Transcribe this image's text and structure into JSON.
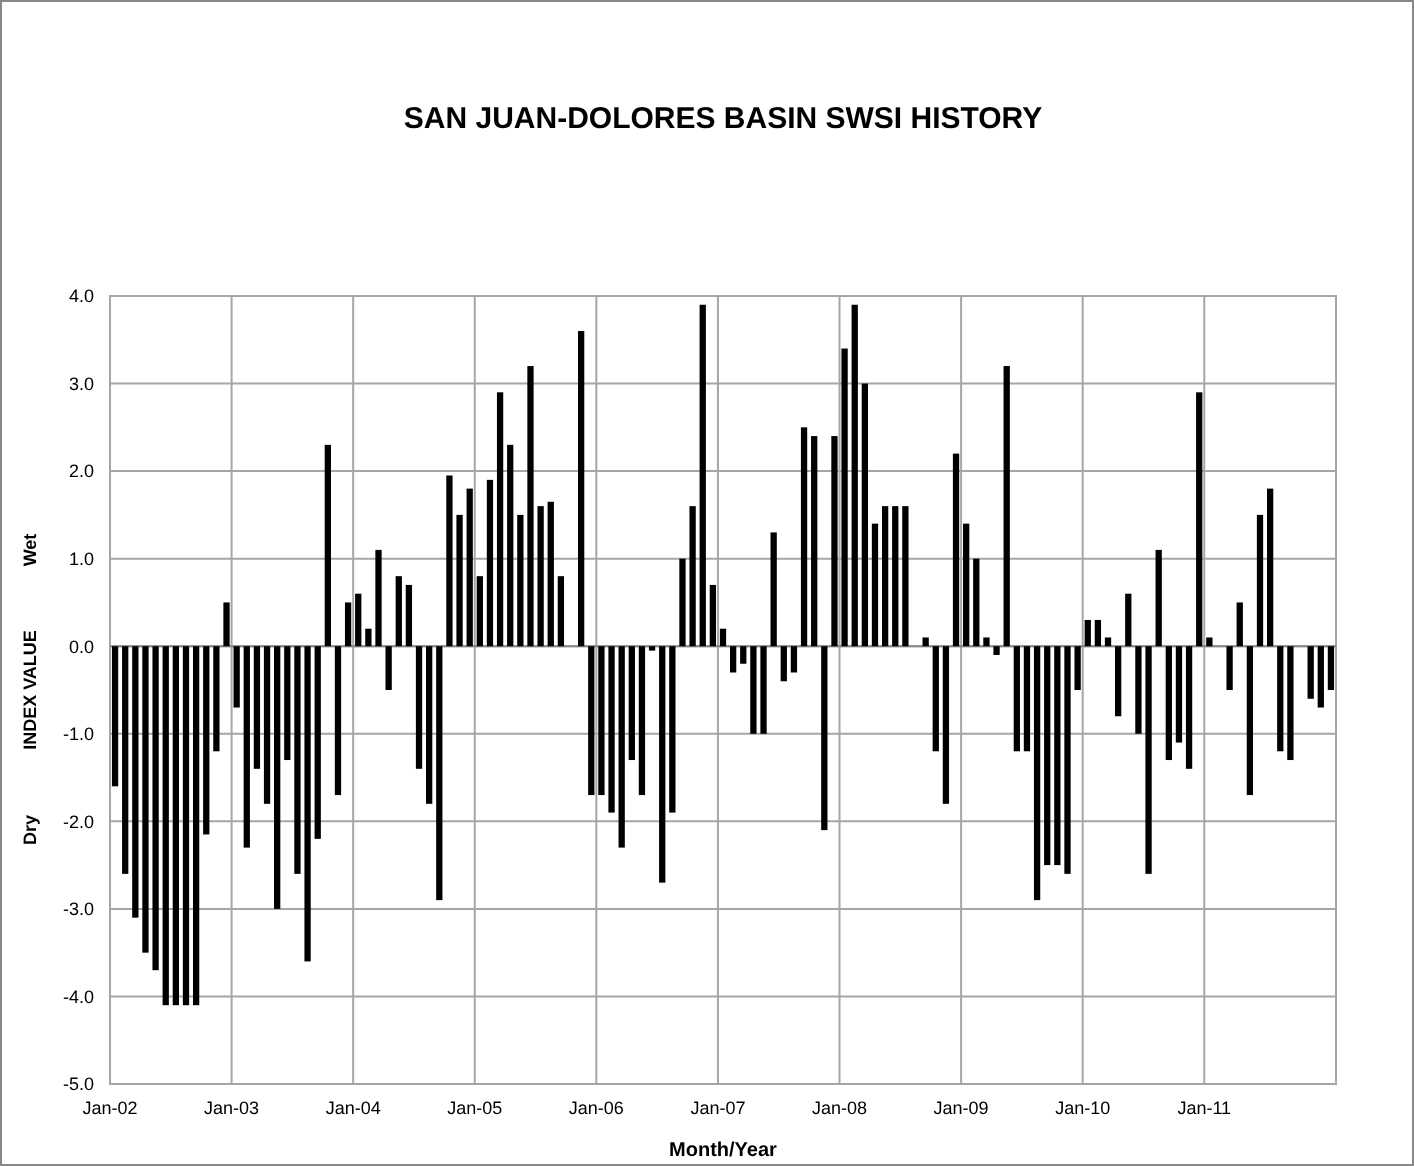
{
  "chart_data": {
    "type": "bar",
    "title": "SAN JUAN-DOLORES BASIN SWSI HISTORY",
    "xlabel": "Month/Year",
    "ylabel": "INDEX VALUE",
    "annotations": [
      "Dry",
      "Wet"
    ],
    "categories": [
      "Jan-02",
      null,
      null,
      null,
      null,
      null,
      null,
      null,
      null,
      null,
      null,
      null,
      "Jan-03",
      null,
      null,
      null,
      null,
      null,
      null,
      null,
      null,
      null,
      null,
      null,
      "Jan-04",
      null,
      null,
      null,
      null,
      null,
      null,
      null,
      null,
      null,
      null,
      null,
      "Jan-05",
      null,
      null,
      null,
      null,
      null,
      null,
      null,
      null,
      null,
      null,
      null,
      "Jan-06",
      null,
      null,
      null,
      null,
      null,
      null,
      null,
      null,
      null,
      null,
      null,
      "Jan-07",
      null,
      null,
      null,
      null,
      null,
      null,
      null,
      null,
      null,
      null,
      null,
      "Jan-08",
      null,
      null,
      null,
      null,
      null,
      null,
      null,
      null,
      null,
      null,
      null,
      "Jan-09",
      null,
      null,
      null,
      null,
      null,
      null,
      null,
      null,
      null,
      null,
      null,
      "Jan-10",
      null,
      null,
      null,
      null,
      null,
      null,
      null,
      null,
      null,
      null,
      null,
      "Jan-11",
      null,
      null,
      null,
      null,
      null,
      null,
      null,
      null,
      null,
      null,
      null,
      null
    ],
    "values": [
      -1.6,
      -2.6,
      -3.1,
      -3.5,
      -3.7,
      -4.1,
      -4.1,
      -4.1,
      -4.1,
      -2.15,
      -1.2,
      0.5,
      -0.7,
      -2.3,
      -1.4,
      -1.8,
      -3.0,
      -1.3,
      -2.6,
      -3.6,
      -2.2,
      2.3,
      -1.7,
      0.5,
      0.6,
      0.2,
      1.1,
      -0.5,
      0.8,
      0.7,
      -1.4,
      -1.8,
      -2.9,
      1.95,
      1.5,
      1.8,
      0.8,
      1.9,
      2.9,
      2.3,
      1.5,
      3.2,
      1.6,
      1.65,
      0.8,
      0,
      3.6,
      -1.7,
      -1.7,
      -1.9,
      -2.3,
      -1.3,
      -1.7,
      -0.05,
      -2.7,
      -1.9,
      1.0,
      1.6,
      3.9,
      0.7,
      0.2,
      -0.3,
      -0.2,
      -1.0,
      -1.0,
      1.3,
      -0.4,
      -0.3,
      2.5,
      2.4,
      -2.1,
      2.4,
      3.4,
      3.9,
      3.0,
      1.4,
      1.6,
      1.6,
      1.6,
      0,
      0.1,
      -1.2,
      -1.8,
      2.2,
      1.4,
      1.0,
      0.1,
      -0.1,
      3.2,
      -1.2,
      -1.2,
      -2.9,
      -2.5,
      -2.5,
      -2.6,
      -0.5,
      0.3,
      0.3,
      0.1,
      -0.8,
      0.6,
      -1.0,
      -2.6,
      1.1,
      -1.3,
      -1.1,
      -1.4,
      2.9,
      0.1,
      0,
      -0.5,
      0.5,
      -1.7,
      1.5,
      1.8,
      -1.2,
      -1.3,
      0,
      -0.6,
      -0.7,
      -0.5
    ],
    "color": "#000000",
    "ylim": [
      -5,
      4
    ],
    "yticks": [
      {
        "value": -5,
        "label": "-5.0"
      },
      {
        "value": -4,
        "label": "-4.0"
      },
      {
        "value": -3,
        "label": "-3.0"
      },
      {
        "value": -2,
        "label": "-2.0"
      },
      {
        "value": -1,
        "label": "-1.0"
      },
      {
        "value": 0,
        "label": "0.0"
      },
      {
        "value": 1,
        "label": "1.0"
      },
      {
        "value": 2,
        "label": "2.0"
      },
      {
        "value": 3,
        "label": "3.0"
      },
      {
        "value": 4,
        "label": "4.0"
      }
    ],
    "grid": true
  }
}
